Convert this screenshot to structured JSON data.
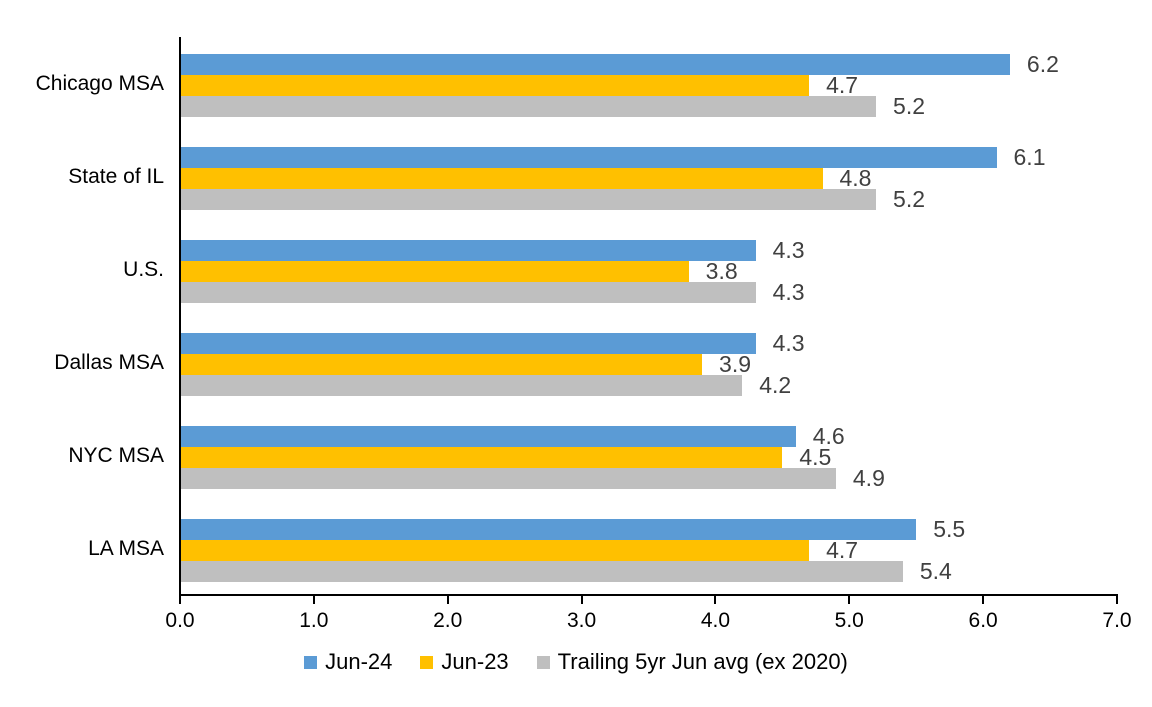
{
  "chart_data": {
    "type": "bar",
    "orientation": "horizontal",
    "title": "",
    "categories": [
      "Chicago MSA",
      "State of IL",
      "U.S.",
      "Dallas MSA",
      "NYC MSA",
      "LA MSA"
    ],
    "series": [
      {
        "name": "Jun-24",
        "color": "#5B9BD5",
        "values": [
          6.2,
          6.1,
          4.3,
          4.3,
          4.6,
          5.5
        ]
      },
      {
        "name": "Jun-23",
        "color": "#FFC000",
        "values": [
          4.7,
          4.8,
          3.8,
          3.9,
          4.5,
          4.7
        ]
      },
      {
        "name": "Trailing 5yr Jun avg (ex 2020)",
        "color": "#BFBFBF",
        "values": [
          5.2,
          5.2,
          4.3,
          4.2,
          4.9,
          5.4
        ]
      }
    ],
    "xlim": [
      0,
      7
    ],
    "x_tick_labels": [
      "0.0",
      "1.0",
      "2.0",
      "3.0",
      "4.0",
      "5.0",
      "6.0",
      "7.0"
    ],
    "data_labels": true,
    "value_label_color": "#404040",
    "axis_color": "#000000",
    "grid": false,
    "legend_position": "bottom"
  }
}
